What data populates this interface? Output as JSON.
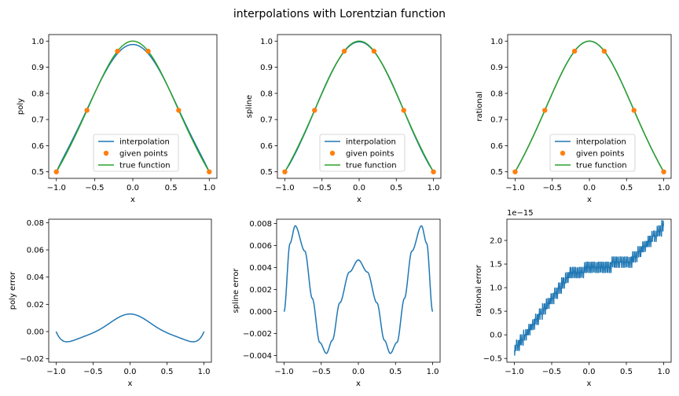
{
  "figure": {
    "title": "interpolations with Lorentzian function"
  },
  "colors": {
    "interpolation": "#1f77b4",
    "given_points": "#ff7f0e",
    "true_function": "#2ca02c",
    "axes": "#000000",
    "legend_border": "#cccccc"
  },
  "chart_data": [
    {
      "type": "line",
      "id": "poly",
      "xlabel": "x",
      "ylabel": "poly",
      "xlim": [
        -1.1,
        1.1
      ],
      "ylim": [
        0.475,
        1.025
      ],
      "xticks": [
        -1.0,
        -0.5,
        0.0,
        0.5,
        1.0
      ],
      "xtick_labels": [
        "−1.0",
        "−0.5",
        "0.0",
        "0.5",
        "1.0"
      ],
      "yticks": [
        0.5,
        0.6,
        0.7,
        0.8,
        0.9,
        1.0
      ],
      "ytick_labels": [
        "0.5",
        "0.6",
        "0.7",
        "0.8",
        "0.9",
        "1.0"
      ],
      "legend": {
        "placement": "lower center",
        "entries": [
          "interpolation",
          "given points",
          "true function"
        ]
      },
      "series": [
        {
          "name": "interpolation",
          "kind": "line",
          "formula": "poly6"
        },
        {
          "name": "given points",
          "kind": "points",
          "x": [
            -1.0,
            -0.6,
            -0.2,
            0.2,
            0.6,
            1.0
          ],
          "y": [
            0.5,
            0.7353,
            0.9615,
            0.9615,
            0.7353,
            0.5
          ]
        },
        {
          "name": "true function",
          "kind": "line",
          "formula": "lorentzian"
        }
      ]
    },
    {
      "type": "line",
      "id": "spline",
      "xlabel": "x",
      "ylabel": "spline",
      "xlim": [
        -1.1,
        1.1
      ],
      "ylim": [
        0.475,
        1.025
      ],
      "xticks": [
        -1.0,
        -0.5,
        0.0,
        0.5,
        1.0
      ],
      "xtick_labels": [
        "−1.0",
        "−0.5",
        "0.0",
        "0.5",
        "1.0"
      ],
      "yticks": [
        0.5,
        0.6,
        0.7,
        0.8,
        0.9,
        1.0
      ],
      "ytick_labels": [
        "0.5",
        "0.6",
        "0.7",
        "0.8",
        "0.9",
        "1.0"
      ],
      "legend": {
        "placement": "lower center",
        "entries": [
          "interpolation",
          "given points",
          "true function"
        ]
      },
      "series": [
        {
          "name": "interpolation",
          "kind": "line",
          "formula": "spline"
        },
        {
          "name": "given points",
          "kind": "points",
          "x": [
            -1.0,
            -0.6,
            -0.2,
            0.2,
            0.6,
            1.0
          ],
          "y": [
            0.5,
            0.7353,
            0.9615,
            0.9615,
            0.7353,
            0.5
          ]
        },
        {
          "name": "true function",
          "kind": "line",
          "formula": "lorentzian"
        }
      ]
    },
    {
      "type": "line",
      "id": "rational",
      "xlabel": "x",
      "ylabel": "rational",
      "xlim": [
        -1.1,
        1.1
      ],
      "ylim": [
        0.475,
        1.025
      ],
      "xticks": [
        -1.0,
        -0.5,
        0.0,
        0.5,
        1.0
      ],
      "xtick_labels": [
        "−1.0",
        "−0.5",
        "0.0",
        "0.5",
        "1.0"
      ],
      "yticks": [
        0.5,
        0.6,
        0.7,
        0.8,
        0.9,
        1.0
      ],
      "ytick_labels": [
        "0.5",
        "0.6",
        "0.7",
        "0.8",
        "0.9",
        "1.0"
      ],
      "legend": {
        "placement": "lower center",
        "entries": [
          "interpolation",
          "given points",
          "true function"
        ]
      },
      "series": [
        {
          "name": "interpolation",
          "kind": "line",
          "formula": "lorentzian"
        },
        {
          "name": "given points",
          "kind": "points",
          "x": [
            -1.0,
            -0.6,
            -0.2,
            0.2,
            0.6,
            1.0
          ],
          "y": [
            0.5,
            0.7353,
            0.9615,
            0.9615,
            0.7353,
            0.5
          ]
        },
        {
          "name": "true function",
          "kind": "line",
          "formula": "lorentzian"
        }
      ]
    },
    {
      "type": "line",
      "id": "poly-error",
      "xlabel": "x",
      "ylabel": "poly error",
      "xlim": [
        -1.1,
        1.1
      ],
      "ylim": [
        -0.0225,
        0.0825
      ],
      "xticks": [
        -1.0,
        -0.5,
        0.0,
        0.5,
        1.0
      ],
      "xtick_labels": [
        "−1.0",
        "−0.5",
        "0.0",
        "0.5",
        "1.0"
      ],
      "yticks": [
        -0.02,
        0.0,
        0.02,
        0.04,
        0.06,
        0.08
      ],
      "ytick_labels": [
        "−0.02",
        "0.00",
        "0.02",
        "0.04",
        "0.06",
        "0.08"
      ],
      "series": [
        {
          "name": "",
          "kind": "line",
          "formula": "poly_error"
        }
      ]
    },
    {
      "type": "line",
      "id": "spline-error",
      "xlabel": "x",
      "ylabel": "spline error",
      "xlim": [
        -1.1,
        1.1
      ],
      "ylim": [
        -0.0046,
        0.0084
      ],
      "xticks": [
        -1.0,
        -0.5,
        0.0,
        0.5,
        1.0
      ],
      "xtick_labels": [
        "−1.0",
        "−0.5",
        "0.0",
        "0.5",
        "1.0"
      ],
      "yticks": [
        -0.004,
        -0.002,
        0.0,
        0.002,
        0.004,
        0.006,
        0.008
      ],
      "ytick_labels": [
        "−0.004",
        "−0.002",
        "0.000",
        "0.002",
        "0.004",
        "0.006",
        "0.008"
      ],
      "series": [
        {
          "name": "",
          "kind": "line",
          "formula": "spline_error"
        }
      ]
    },
    {
      "type": "line",
      "id": "rational-error",
      "xlabel": "x",
      "ylabel": "rational error",
      "offset_text": "1e−15",
      "xlim": [
        -1.1,
        1.1
      ],
      "ylim": [
        -0.58,
        2.45
      ],
      "xticks": [
        -1.0,
        -0.5,
        0.0,
        0.5,
        1.0
      ],
      "xtick_labels": [
        "−1.0",
        "−0.5",
        "0.0",
        "0.5",
        "1.0"
      ],
      "yticks": [
        -0.5,
        0.0,
        0.5,
        1.0,
        1.5,
        2.0
      ],
      "ytick_labels": [
        "−0.5",
        "0.0",
        "0.5",
        "1.0",
        "1.5",
        "2.0"
      ],
      "series": [
        {
          "name": "",
          "kind": "line",
          "formula": "rational_error"
        }
      ]
    }
  ]
}
